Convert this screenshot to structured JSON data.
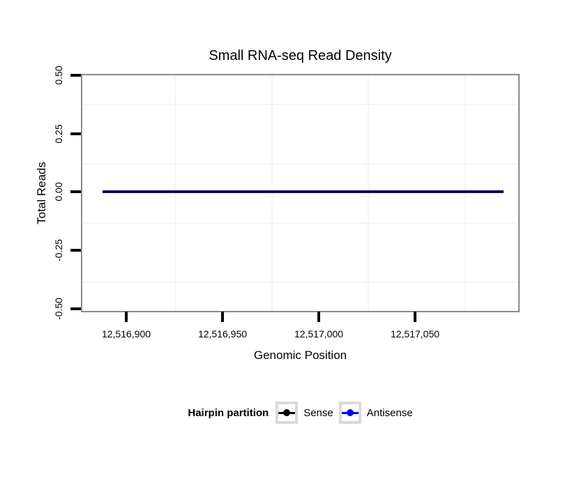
{
  "figure": {
    "title": "Small RNA-seq Read Density",
    "x_axis": {
      "label": "Genomic Position",
      "ticks": [
        "12,516,900",
        "12,516,950",
        "12,517,000",
        "12,517,050"
      ]
    },
    "y_axis": {
      "label": "Total Reads",
      "ticks": [
        "0.50",
        "0.25",
        "0.00",
        "-0.25",
        "-0.50"
      ]
    },
    "legend": {
      "title": "Hairpin partition",
      "entries": [
        {
          "label": "Sense",
          "color": "#000000"
        },
        {
          "label": "Antisense",
          "color": "#0000FF"
        }
      ]
    },
    "colors": {
      "panel_border": "#8a8a8a",
      "minor_gridline": "#f5f5f5",
      "tick_marks": "#000000",
      "legend_key_border": "#d9d9d9"
    }
  },
  "chart_data": {
    "type": "line",
    "title": "Small RNA-seq Read Density",
    "xlabel": "Genomic Position",
    "ylabel": "Total Reads",
    "x_tick_values": [
      12516900,
      12516950,
      12517000,
      12517050
    ],
    "y_tick_values": [
      0.5,
      0.25,
      0.0,
      -0.25,
      -0.5
    ],
    "xlim": [
      12516876,
      12517104
    ],
    "ylim": [
      -0.5,
      0.5
    ],
    "grid": "minor gridlines only (midpoints between major ticks), very light gray; white panel background",
    "legend_position": "bottom-center",
    "legend_title": "Hairpin partition",
    "series": [
      {
        "name": "Sense",
        "color": "#000000",
        "x": [
          12516888,
          12517096
        ],
        "y": [
          0,
          0
        ],
        "note": "flat line at y = 0 spanning the full data range (drawn on top of Antisense)"
      },
      {
        "name": "Antisense",
        "color": "#0000FF",
        "x": [
          12516888,
          12517096
        ],
        "y": [
          0,
          0
        ],
        "note": "flat line at y = 0 spanning the full data range (hidden beneath Sense line except edges)"
      }
    ]
  }
}
